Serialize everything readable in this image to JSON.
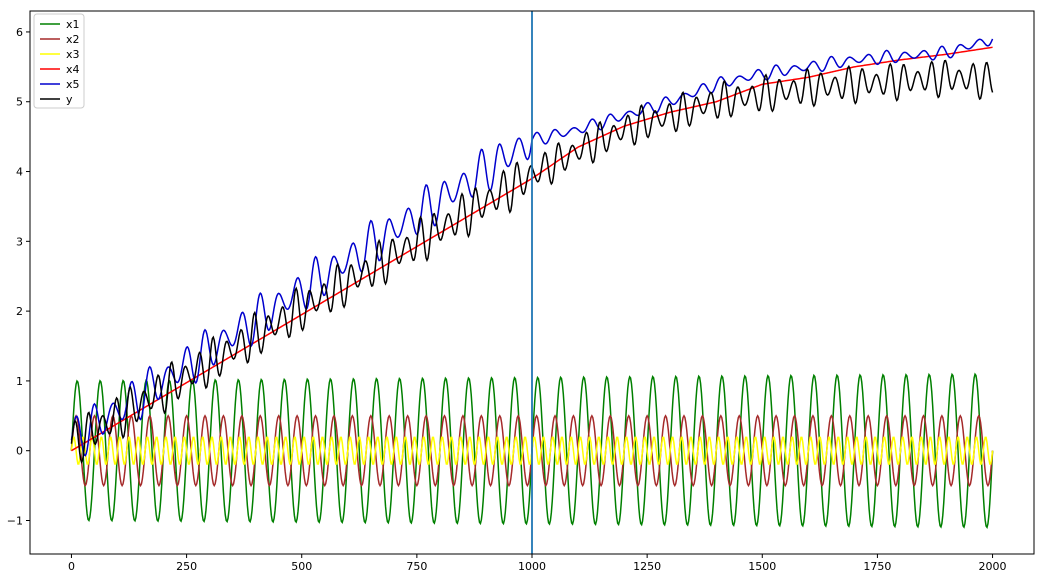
{
  "chart_data": {
    "type": "line",
    "title": "",
    "xlabel": "",
    "ylabel": "",
    "xlim": [
      -90,
      2090
    ],
    "ylim": [
      -1.48,
      6.3
    ],
    "grid": false,
    "legend": "top-left",
    "x_ticks": [
      0,
      250,
      500,
      750,
      1000,
      1250,
      1500,
      1750,
      2000
    ],
    "x_tick_labels": [
      "0",
      "250",
      "500",
      "750",
      "1000",
      "1250",
      "1500",
      "1750",
      "2000"
    ],
    "y_ticks": [
      -1,
      0,
      1,
      2,
      3,
      4,
      5,
      6
    ],
    "y_tick_labels": [
      "−1",
      "0",
      "1",
      "2",
      "3",
      "4",
      "5",
      "6"
    ],
    "vline": {
      "x": 1000,
      "color": "#1f77b4"
    },
    "series": [
      {
        "name": "x1",
        "color": "#008000",
        "kind": "sine",
        "amplitude_start": 1.0,
        "amplitude_end": 1.1,
        "period": 50,
        "offset": 0,
        "trend_end": 0
      },
      {
        "name": "x2",
        "color": "#a52a2a",
        "kind": "sine",
        "amplitude_start": 0.5,
        "amplitude_end": 0.5,
        "period": 40,
        "offset": 0,
        "trend_end": 0
      },
      {
        "name": "x3",
        "color": "#ffff00",
        "kind": "sine",
        "amplitude_start": 0.2,
        "amplitude_end": 0.2,
        "period": 20,
        "offset": 0,
        "trend_end": 0
      },
      {
        "name": "x4",
        "color": "#ff0000",
        "kind": "trend",
        "points": [
          [
            0,
            0
          ],
          [
            1000,
            3.9
          ],
          [
            1100,
            4.35
          ],
          [
            1200,
            4.65
          ],
          [
            1300,
            4.85
          ],
          [
            1400,
            5.0
          ],
          [
            1500,
            5.25
          ],
          [
            1600,
            5.35
          ],
          [
            1700,
            5.5
          ],
          [
            1800,
            5.6
          ],
          [
            1900,
            5.68
          ],
          [
            2000,
            5.78
          ]
        ]
      },
      {
        "name": "x5",
        "color": "#0000cd",
        "kind": "trend_wave",
        "points": [
          [
            0,
            0.15
          ],
          [
            1000,
            4.45
          ],
          [
            1100,
            4.6
          ],
          [
            1200,
            4.8
          ],
          [
            1300,
            5.0
          ],
          [
            1400,
            5.25
          ],
          [
            1500,
            5.4
          ],
          [
            1600,
            5.5
          ],
          [
            1700,
            5.6
          ],
          [
            1800,
            5.65
          ],
          [
            1900,
            5.7
          ],
          [
            2000,
            5.9
          ]
        ],
        "wave_amplitude_first": 0.35,
        "wave_amplitude_second": 0.1,
        "period": 40
      },
      {
        "name": "y",
        "color": "#000000",
        "kind": "trend_wave",
        "points": [
          [
            0,
            0.1
          ],
          [
            1000,
            3.95
          ],
          [
            1100,
            4.3
          ],
          [
            1200,
            4.6
          ],
          [
            1300,
            4.8
          ],
          [
            1400,
            5.0
          ],
          [
            1500,
            5.1
          ],
          [
            1600,
            5.2
          ],
          [
            1700,
            5.25
          ],
          [
            1800,
            5.3
          ],
          [
            1900,
            5.35
          ],
          [
            2000,
            5.3
          ]
        ],
        "wave_amplitude_first": 0.35,
        "wave_amplitude_second": 0.28,
        "period": 30
      }
    ]
  }
}
